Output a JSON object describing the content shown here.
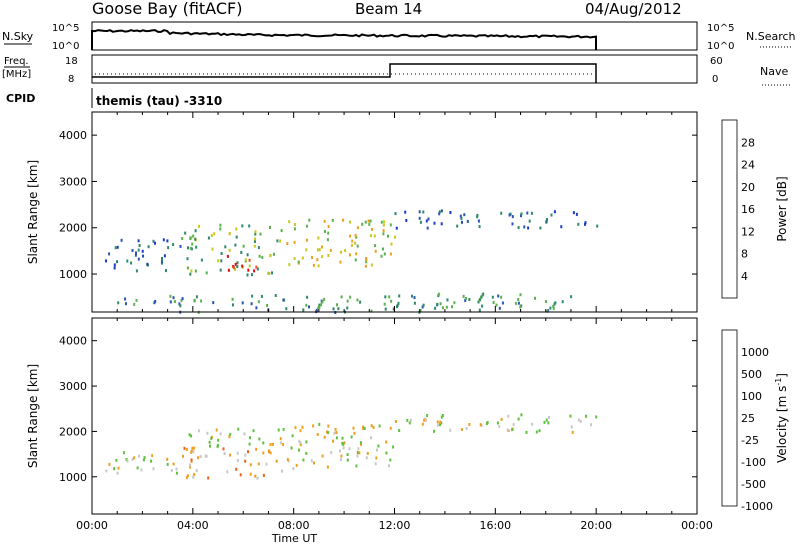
{
  "header": {
    "station": "Goose Bay (fitACF)",
    "beam": "Beam 14",
    "date": "04/Aug/2012"
  },
  "summary_panels": {
    "nsky_label": "N.Sky",
    "nsky_ticks": [
      "10^5",
      "10^0"
    ],
    "nsearch_label": "N.Search",
    "nsearch_ticks": [
      "10^5",
      "10^0"
    ],
    "freq_label_1": "Freq.",
    "freq_label_2": "[MHz]",
    "freq_ticks": [
      "18",
      "8"
    ],
    "nave_label": "Nave",
    "nave_ticks": [
      "60",
      "0"
    ],
    "cpid_label": "CPID",
    "cpid_text": "themis (tau) -3310"
  },
  "chart_data": [
    {
      "type": "heatmap",
      "name_hint": "power",
      "ylabel": "Slant Range [km]",
      "ylim": [
        180,
        4500
      ],
      "yticks": [
        1000,
        2000,
        3000,
        4000
      ],
      "xlim": [
        0,
        24
      ],
      "colorbar_label": "Power [dB]",
      "colorbar_ticks": [
        "4",
        "8",
        "12",
        "16",
        "20",
        "24",
        "28"
      ],
      "colorbar_colors": [
        "#1a3cc8",
        "#2a55b0",
        "#2f8a6a",
        "#5bb050",
        "#c8c820",
        "#f0a020",
        "#f05018",
        "#e01010"
      ],
      "regions": [
        {
          "t0": 3.5,
          "t1": 7.5,
          "r0": 1000,
          "r1": 2100,
          "level": 3
        },
        {
          "t0": 5.0,
          "t1": 6.5,
          "r0": 1100,
          "r1": 1500,
          "level": 7
        },
        {
          "t0": 7.5,
          "t1": 12.0,
          "r0": 1200,
          "r1": 2200,
          "level": 4
        },
        {
          "t0": 0.5,
          "t1": 3.5,
          "r0": 1100,
          "r1": 1800,
          "level": 1
        },
        {
          "t0": 12.0,
          "t1": 20.0,
          "r0": 2000,
          "r1": 2400,
          "level": 1
        },
        {
          "t0": 1.0,
          "t1": 20.0,
          "r0": 200,
          "r1": 600,
          "level": 2
        }
      ]
    },
    {
      "type": "heatmap",
      "name_hint": "velocity",
      "ylabel": "Slant Range [km]",
      "ylim": [
        180,
        4500
      ],
      "yticks": [
        1000,
        2000,
        3000,
        4000
      ],
      "xlim": [
        0,
        24
      ],
      "xticks": [
        "00:00",
        "04:00",
        "08:00",
        "12:00",
        "16:00",
        "20:00",
        "00:00"
      ],
      "xlabel": "Time UT",
      "colorbar_label": "Velocity [m s",
      "colorbar_label_sup": "-1",
      "colorbar_label_end": "]",
      "colorbar_ticks": [
        "1000",
        "500",
        "100",
        "25",
        "-25",
        "-100",
        "-500",
        "-1000"
      ],
      "colorbar_colors": [
        "#1f3cc8",
        "#2f6ab0",
        "#2f8a5a",
        "#60c040",
        "#c8c8c8",
        "#f0a020",
        "#f06018",
        "#e01010"
      ],
      "regions": [
        {
          "t0": 3.5,
          "t1": 7.5,
          "r0": 1000,
          "r1": 1700,
          "level": 5
        },
        {
          "t0": 3.5,
          "t1": 7.5,
          "r0": 1700,
          "r1": 2100,
          "level": 4
        },
        {
          "t0": 7.5,
          "t1": 12.0,
          "r0": 1200,
          "r1": 2200,
          "level": 4
        },
        {
          "t0": 12.0,
          "t1": 20.0,
          "r0": 2000,
          "r1": 2400,
          "level": 4
        },
        {
          "t0": 0.5,
          "t1": 3.5,
          "r0": 1100,
          "r1": 1600,
          "level": 4
        }
      ]
    }
  ]
}
